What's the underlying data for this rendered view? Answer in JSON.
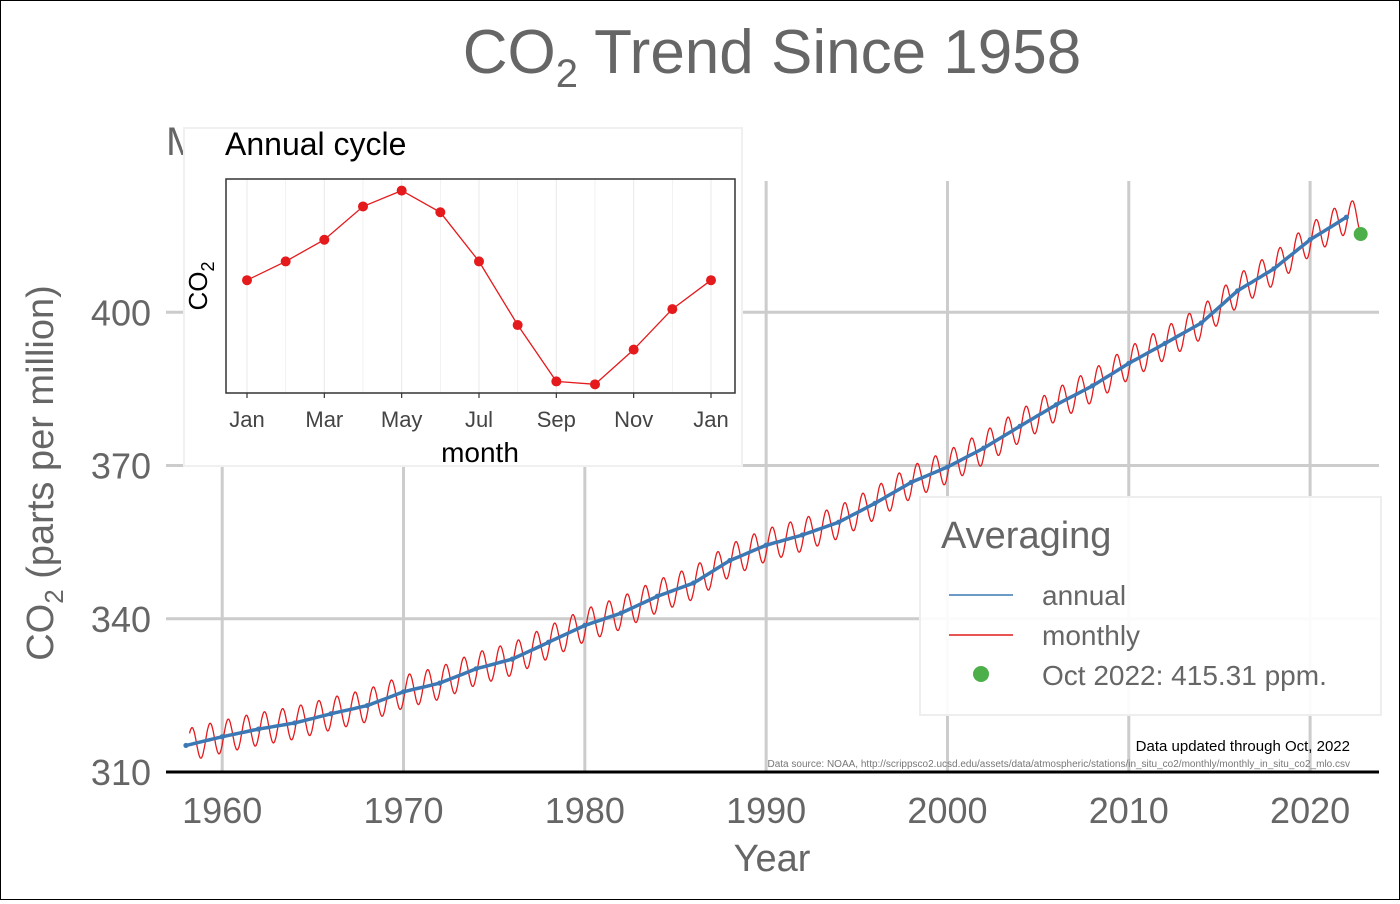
{
  "chart_data": [
    {
      "type": "line",
      "title_main": "CO",
      "title_sub": "2",
      "title_rest": " Trend Since 1958",
      "subtitle_partial": "M",
      "xlabel": "Year",
      "ylabel_main": "CO",
      "ylabel_sub": "2",
      "ylabel_rest": " (parts per million)",
      "xlim": [
        1956.9,
        2023.8
      ],
      "ylim": [
        310,
        430
      ],
      "xticks": [
        1960,
        1970,
        1980,
        1990,
        2000,
        2010,
        2020
      ],
      "xtick_labels": [
        "1960",
        "1970",
        "1980",
        "1990",
        "2000",
        "2010",
        "2020"
      ],
      "yticks": [
        310,
        340,
        370,
        400
      ],
      "ytick_labels": [
        "310",
        "340",
        "370",
        "400"
      ],
      "grid": true,
      "legend": {
        "title": "Averaging",
        "placement": "bottom-right",
        "entries": [
          "annual",
          "monthly",
          "Oct 2022: 415.31 ppm."
        ]
      },
      "series": [
        {
          "name": "annual",
          "color": "#3c78b4",
          "x": [
            1958,
            1960,
            1962,
            1964,
            1966,
            1968,
            1970,
            1972,
            1974,
            1976,
            1978,
            1980,
            1982,
            1984,
            1986,
            1988,
            1990,
            1992,
            1994,
            1996,
            1998,
            2000,
            2002,
            2004,
            2006,
            2008,
            2010,
            2012,
            2014,
            2016,
            2018,
            2020,
            2022
          ],
          "values": [
            315.2,
            316.9,
            318.4,
            319.6,
            321.4,
            323.0,
            325.7,
            327.4,
            330.2,
            332.1,
            335.4,
            338.7,
            341.1,
            344.4,
            347.0,
            351.4,
            354.4,
            356.4,
            358.9,
            362.6,
            366.7,
            369.7,
            373.4,
            377.7,
            381.9,
            385.6,
            390.0,
            393.9,
            397.9,
            404.2,
            408.5,
            414.2,
            418.6
          ]
        },
        {
          "name": "monthly",
          "color": "#e41a1c",
          "seasonal_amplitude": 3.2,
          "x_start": 1958.2,
          "x_end": 2022.8
        }
      ],
      "highlight": {
        "label": "Oct 2022: 415.31 ppm.",
        "x": 2022.79,
        "y": 415.31,
        "color": "#4daf4a"
      },
      "annotations": [
        "Data updated through Oct, 2022",
        "Data source: NOAA, http://scrippsco2.ucsd.edu/assets/data/atmospheric/stations/in_situ_co2/monthly/monthly_in_situ_co2_mlo.csv"
      ]
    },
    {
      "type": "line",
      "title": "Annual cycle",
      "xlabel": "month",
      "ylabel_main": "CO",
      "ylabel_sub": "2",
      "x": [
        1,
        2,
        3,
        4,
        5,
        6,
        7,
        8,
        9,
        10,
        11,
        12,
        13
      ],
      "xtick_positions": [
        1,
        3,
        5,
        7,
        9,
        11,
        13
      ],
      "xtick_labels": [
        "Jan",
        "Mar",
        "May",
        "Jul",
        "Sep",
        "Nov",
        "Jan"
      ],
      "values": [
        0.1,
        0.75,
        1.5,
        2.65,
        3.2,
        2.45,
        0.75,
        -1.45,
        -3.4,
        -3.5,
        -2.3,
        -0.9,
        0.1
      ],
      "ylim": [
        -3.8,
        3.6
      ],
      "color": "#e41a1c",
      "grid": true
    }
  ]
}
